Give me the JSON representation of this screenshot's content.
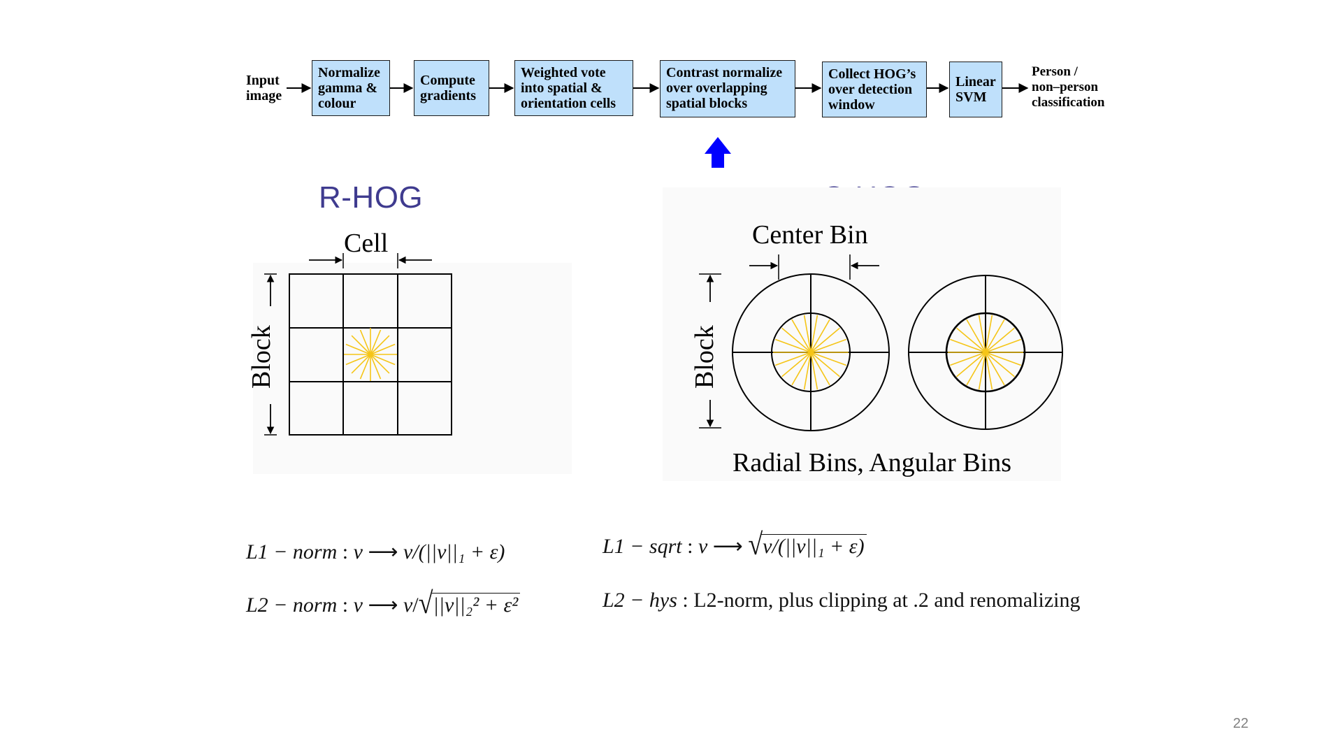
{
  "pipeline": {
    "input_label": "Input\nimage",
    "output_label": "Person /\nnon–person\nclassification",
    "steps": [
      "Normalize\ngamma &\ncolour",
      "Compute\ngradients",
      "Weighted vote\ninto spatial &\norientation cells",
      "Contrast normalize\nover overlapping\nspatial blocks",
      "Collect HOG’s\nover detection\nwindow",
      "Linear\nSVM"
    ],
    "highlighted_step": "Contrast normalize\nover overlapping\nspatial blocks"
  },
  "colors": {
    "box_fill": "#bfe0fb",
    "highlight_arrow": "#0000ff",
    "title": "#3f3b8f",
    "orientation_lines": "#f5c518"
  },
  "rhog": {
    "title": "R-HOG",
    "cell_label": "Cell",
    "block_label": "Block"
  },
  "chog": {
    "title": "C-HOG",
    "center_bin_label": "Center Bin",
    "block_label": "Block",
    "bins_label": "Radial Bins, Angular Bins"
  },
  "formulas": {
    "l1_norm": {
      "name": "L1 − norm",
      "expr": "v/(||v||₁ + ε)"
    },
    "l2_norm": {
      "name": "L2 − norm",
      "expr": "||v||₂² + ε²"
    },
    "l1_sqrt": {
      "name": "L1 − sqrt",
      "expr": "v/(||v||₁ + ε)"
    },
    "l2_hys": {
      "name": "L2 − hys",
      "text": "L2-norm, plus clipping at .2 and renomalizing"
    }
  },
  "page_number": "22"
}
